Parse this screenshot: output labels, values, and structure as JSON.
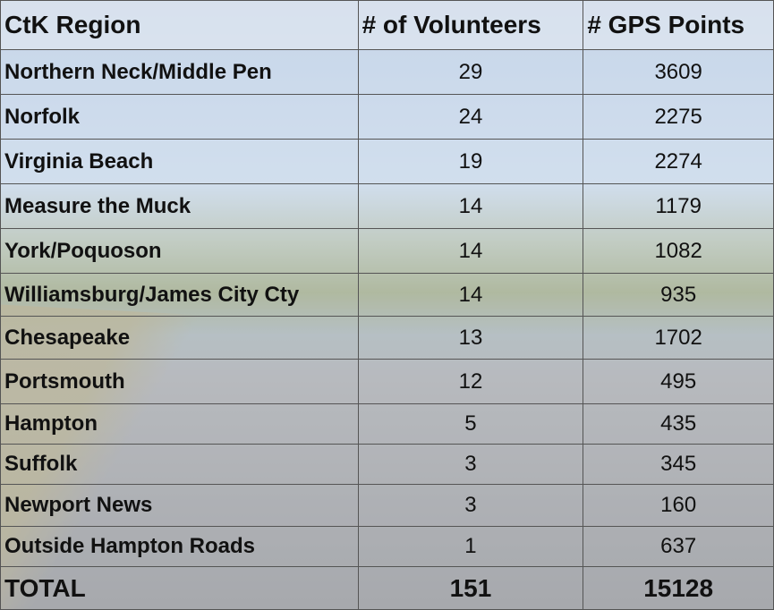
{
  "table": {
    "header": [
      "CtK Region",
      "# of Volunteers",
      "# GPS Points"
    ],
    "rows": [
      [
        "Northern Neck/Middle Pen",
        29,
        3609
      ],
      [
        "Norfolk",
        24,
        2275
      ],
      [
        "Virginia Beach",
        19,
        2274
      ],
      [
        "Measure the Muck",
        14,
        1179
      ],
      [
        "York/Poquoson",
        14,
        1082
      ],
      [
        "Williamsburg/James City Cty",
        14,
        935
      ],
      [
        "Chesapeake",
        13,
        1702
      ],
      [
        "Portsmouth",
        12,
        495
      ],
      [
        "Hampton",
        5,
        435
      ],
      [
        "Suffolk",
        3,
        345
      ],
      [
        "Newport News",
        3,
        160
      ],
      [
        "Outside Hampton Roads",
        1,
        637
      ]
    ],
    "total": [
      "TOTAL",
      151,
      15128
    ]
  }
}
